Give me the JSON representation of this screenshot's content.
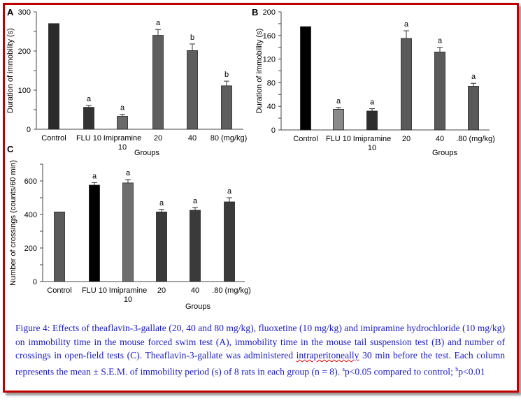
{
  "chart_data": [
    {
      "panel": "A",
      "type": "bar",
      "ylabel": "Duration of immobility (s)",
      "xlabel": "Groups",
      "ylim": [
        0,
        300
      ],
      "yticks": [
        "0",
        "100",
        "200",
        "300"
      ],
      "ytick_values": [
        0,
        100,
        200,
        300
      ],
      "categories": [
        "Control",
        "FLU 10",
        "Imipramine|10",
        "20",
        "40",
        "80 (mg/kg)"
      ],
      "values": [
        270,
        56,
        33,
        240,
        201,
        111
      ],
      "errors": [
        0,
        5,
        5,
        15,
        17,
        12
      ],
      "labels": [
        "",
        "a",
        "a",
        "a",
        "b",
        "b"
      ],
      "colors": [
        "#2a2a2a",
        "#333333",
        "#6a6a6a",
        "#5e5e5e",
        "#5e5e5e",
        "#5e5e5e"
      ]
    },
    {
      "panel": "B",
      "type": "bar",
      "ylabel": "Duration of immobility (s)",
      "xlabel": "Groups",
      "ylim": [
        0,
        200
      ],
      "yticks": [
        "0",
        "40",
        "80",
        "120",
        "160",
        "200"
      ],
      "ytick_values": [
        0,
        40,
        80,
        120,
        160,
        200
      ],
      "categories": [
        "Control",
        "FLU 10",
        "Imipramine|10",
        "20",
        "40",
        ".80 (mg/kg)"
      ],
      "values": [
        175,
        35,
        32,
        155,
        132,
        74
      ],
      "errors": [
        0,
        3,
        4,
        13,
        8,
        5
      ],
      "labels": [
        "",
        "a",
        "a",
        "a",
        "a",
        "a"
      ],
      "colors": [
        "#000000",
        "#8a8a8a",
        "#2e2e2e",
        "#5a5a5a",
        "#5a5a5a",
        "#5a5a5a"
      ]
    },
    {
      "panel": "C",
      "type": "bar",
      "ylabel": "Number of crossings (counts/60 min)",
      "xlabel": "Groups",
      "ylim": [
        0,
        700
      ],
      "yticks": [
        "0",
        "200",
        "400",
        "600"
      ],
      "ytick_values": [
        0,
        200,
        400,
        600
      ],
      "categories": [
        "Control",
        "FLU 10",
        "Imipramine|10",
        "20",
        "40",
        ".80 (mg/kg)"
      ],
      "values": [
        415,
        575,
        588,
        415,
        425,
        475
      ],
      "errors": [
        0,
        15,
        20,
        15,
        17,
        25
      ],
      "labels": [
        "",
        "a",
        "a",
        "a",
        "a",
        "a"
      ],
      "colors": [
        "#5a5a5a",
        "#000000",
        "#6e6e6e",
        "#3a3a3a",
        "#3a3a3a",
        "#3a3a3a"
      ]
    }
  ],
  "caption": {
    "part1": "Figure 4: Effects of theaflavin-3-gallate (20, 40 and 80 mg/kg), fluoxetine (10 mg/kg) and imipramine hydrochloride (10 mg/kg) on immobility time in the mouse forced swim test (A), immobility time in the mouse tail suspension test (B) and number of crossings in open-field tests (C). Theaflavin-3-gallate was administered ",
    "underlined": "intraperitoneally",
    "part2": " 30 min before the test. Each column represents the mean ± S.E.M. of immobility period (s) of 8 rats in each group (n = 8). ",
    "sup_a": "a",
    "part3": "p<0.05 compared to control; ",
    "sup_b": "b",
    "part4": "p<0.01"
  }
}
